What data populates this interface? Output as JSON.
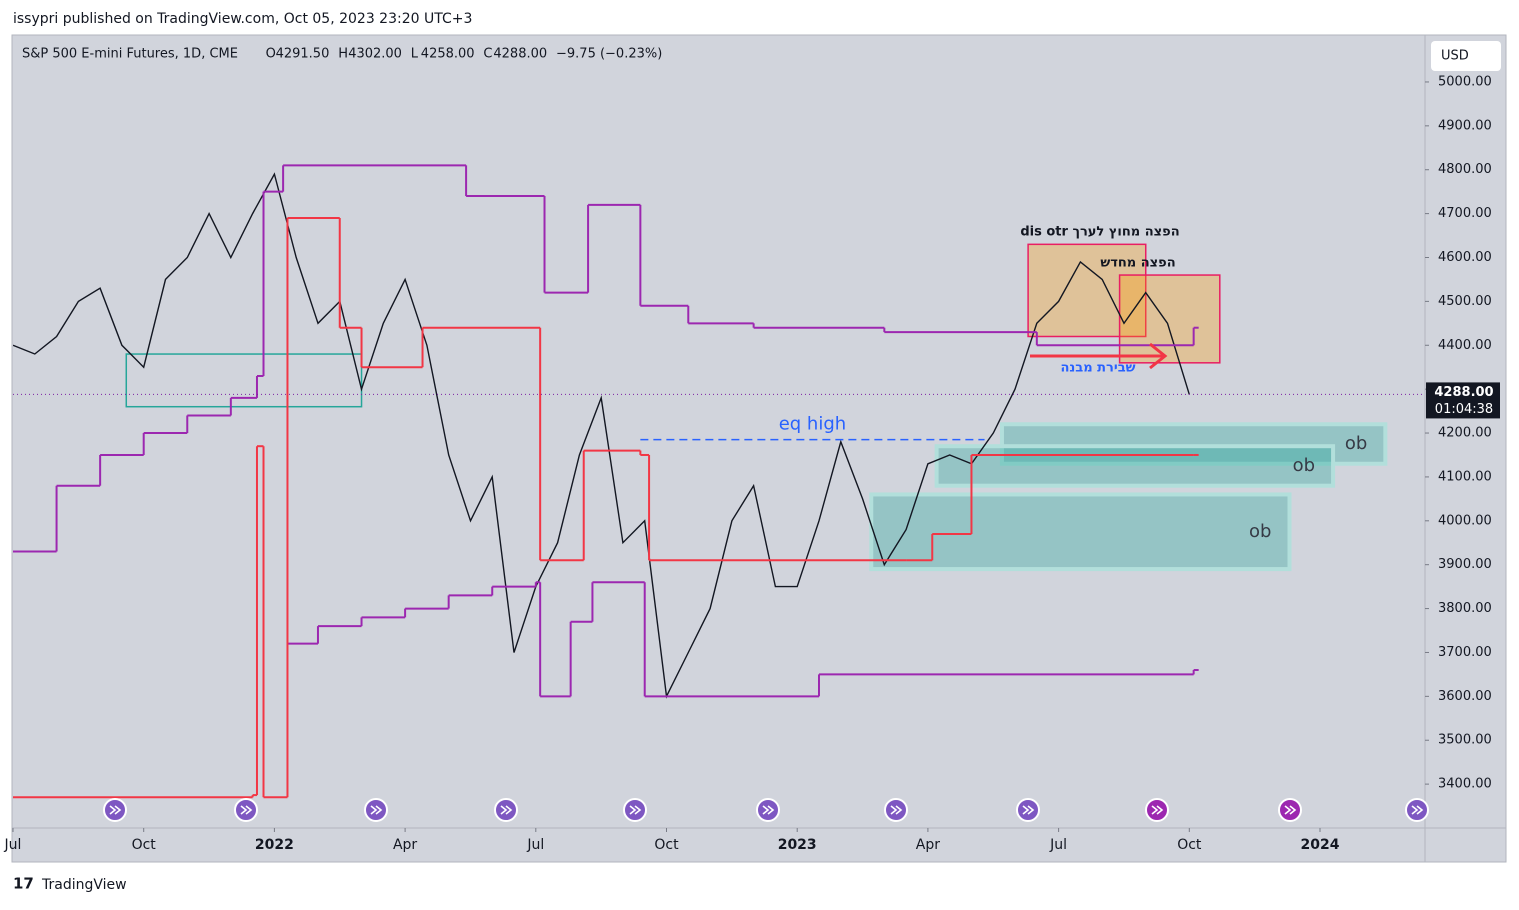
{
  "header": "issypri published on TradingView.com, Oct 05, 2023 23:20 UTC+3",
  "footer": "TradingView",
  "chart_data": {
    "type": "line",
    "title": "S&P 500 E-mini Futures, 1D, CME",
    "quote": [
      {
        "prefix": "O",
        "value": 4291.5,
        "value_label": "4291.50"
      },
      {
        "prefix": "H",
        "value": 4302,
        "value_label": "4302.00"
      },
      {
        "prefix": "L",
        "value": 4258,
        "value_label": "4258.00"
      },
      {
        "prefix": "C",
        "value": 4288,
        "value_label": "4288.00"
      }
    ],
    "change": {
      "value": -9.75,
      "label": "−9.75 (−0.23%)"
    },
    "currency": "USD",
    "last_price": {
      "value": 4288,
      "label": "4288.00"
    },
    "countdown": "01:04:38",
    "xlim": [
      0,
      32.41
    ],
    "ylim": [
      3300,
      5107
    ],
    "xticks": [
      {
        "value": 0,
        "label": "Jul"
      },
      {
        "value": 3,
        "label": "Oct"
      },
      {
        "value": 6,
        "label": "2022"
      },
      {
        "value": 9,
        "label": "Apr"
      },
      {
        "value": 12,
        "label": "Jul"
      },
      {
        "value": 15,
        "label": "Oct"
      },
      {
        "value": 18,
        "label": "2023"
      },
      {
        "value": 21,
        "label": "Apr"
      },
      {
        "value": 24,
        "label": "Jul"
      },
      {
        "value": 27,
        "label": "Oct"
      },
      {
        "value": 30,
        "label": "2024"
      }
    ],
    "yticks": [
      {
        "value": 3400,
        "label": "3400.00"
      },
      {
        "value": 3500,
        "label": "3500.00"
      },
      {
        "value": 3600,
        "label": "3600.00"
      },
      {
        "value": 3700,
        "label": "3700.00"
      },
      {
        "value": 3800,
        "label": "3800.00"
      },
      {
        "value": 3900,
        "label": "3900.00"
      },
      {
        "value": 4000,
        "label": "4000.00"
      },
      {
        "value": 4100,
        "label": "4100.00"
      },
      {
        "value": 4200,
        "label": "4200.00"
      },
      {
        "value": 4300,
        "label": "4300.00"
      },
      {
        "value": 4400,
        "label": "4400.00"
      },
      {
        "value": 4500,
        "label": "4500.00"
      },
      {
        "value": 4600,
        "label": "4600.00"
      },
      {
        "value": 4700,
        "label": "4700.00"
      },
      {
        "value": 4800,
        "label": "4800.00"
      },
      {
        "value": 4900,
        "label": "4900.00"
      },
      {
        "value": 5000,
        "label": "5000.00"
      }
    ],
    "series": [
      {
        "color": "#131722",
        "x": [
          0,
          0.5,
          1,
          1.5,
          2,
          2.5,
          3,
          3.5,
          4,
          4.5,
          5,
          5.5,
          6,
          6.5,
          7,
          7.5,
          8,
          8.5,
          9,
          9.5,
          10,
          10.5,
          11,
          11.5,
          12,
          12.5,
          13,
          13.5,
          14,
          14.5,
          15,
          15.5,
          16,
          16.5,
          17,
          17.5,
          18,
          18.5,
          19,
          19.5,
          20,
          20.5,
          21,
          21.5,
          22,
          22.5,
          23,
          23.5,
          24,
          24.5,
          25,
          25.5,
          26,
          26.5,
          27
        ],
        "values": [
          4400,
          4380,
          4420,
          4500,
          4530,
          4400,
          4350,
          4550,
          4600,
          4700,
          4600,
          4700,
          4790,
          4600,
          4450,
          4500,
          4300,
          4450,
          4550,
          4400,
          4150,
          4000,
          4100,
          3700,
          3850,
          3950,
          4150,
          4280,
          3950,
          4000,
          3600,
          3700,
          3800,
          4000,
          4080,
          3850,
          3850,
          4000,
          4180,
          4050,
          3900,
          3980,
          4130,
          4150,
          4130,
          4200,
          4300,
          4450,
          4500,
          4590,
          4550,
          4450,
          4520,
          4450,
          4288
        ]
      },
      {
        "color": "#9c27b0",
        "x": [
          0,
          1,
          2,
          3,
          4,
          5,
          5.6,
          5.75,
          6.2,
          10.4,
          12.2,
          13.2,
          14.4,
          15.5,
          17,
          20,
          23.5,
          27.1
        ],
        "values": [
          3930,
          4080,
          4150,
          4200,
          4240,
          4280,
          4330,
          4750,
          4810,
          4740,
          4520,
          4720,
          4490,
          4450,
          4440,
          4430,
          4400,
          4440
        ]
      },
      {
        "color": "#9c27b0",
        "x": [
          6.3,
          7,
          8,
          9,
          10,
          11,
          12,
          12.1,
          12.8,
          13.3,
          14.5,
          18.5,
          27.1
        ],
        "values": [
          3720,
          3760,
          3780,
          3800,
          3830,
          3850,
          3860,
          3600,
          3770,
          3860,
          3600,
          3650,
          3660
        ]
      },
      {
        "color": "#f23645",
        "x": [
          0,
          5.5,
          5.6,
          5.75,
          6.3,
          7.5,
          8,
          9.4,
          12.1,
          13.1,
          14.4,
          14.6,
          20.5,
          21.1,
          22,
          27.1
        ],
        "values": [
          3370,
          3375,
          4170,
          3370,
          4690,
          4440,
          4350,
          4440,
          3910,
          4160,
          4150,
          3910,
          3910,
          3970,
          4150,
          4150
        ]
      }
    ],
    "zones": [
      {
        "x": [
          2.6,
          8
        ],
        "y": [
          4260,
          4380
        ],
        "color": "#26a69a",
        "fill": "rgba(0,0,0,0)"
      },
      {
        "x": [
          22.7,
          31.5
        ],
        "y": [
          4130,
          4220
        ],
        "color": "#b2dfdb",
        "fill": "rgba(38,166,154,0.35)",
        "label": "ob"
      },
      {
        "x": [
          21.2,
          30.3
        ],
        "y": [
          4080,
          4170
        ],
        "color": "#b2dfdb",
        "fill": "rgba(38,166,154,0.35)",
        "label": "ob"
      },
      {
        "x": [
          19.7,
          29.3
        ],
        "y": [
          3890,
          4060
        ],
        "color": "#b2dfdb",
        "fill": "rgba(38,166,154,0.35)",
        "label": "ob"
      },
      {
        "x": [
          23.3,
          26
        ],
        "y": [
          4420,
          4630
        ],
        "color": "#e91e63",
        "fill": "rgba(255,152,0,0.3)"
      },
      {
        "x": [
          25.4,
          27.7
        ],
        "y": [
          4360,
          4560
        ],
        "color": "#e91e63",
        "fill": "rgba(255,152,0,0.3)"
      }
    ],
    "eq_high": {
      "label": "eq high",
      "x": [
        14.4,
        22.3
      ],
      "y": 4185
    },
    "annotations": [
      "dis otr הפצה מחוץ לערך",
      "הפצה מחדש",
      "שבירת מבנה"
    ]
  }
}
